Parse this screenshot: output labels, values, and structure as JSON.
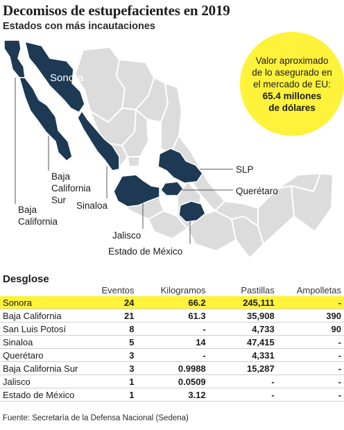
{
  "header": {
    "title": "Decomisos de estupefacientes en 2019",
    "subtitle": "Estados con más incautaciones"
  },
  "map": {
    "highlight_color": "#1d3954",
    "base_color": "#dcdcdc",
    "labels": {
      "sonora": "Sonora",
      "bc_sur": [
        "Baja",
        "California",
        "Sur"
      ],
      "bc": [
        "Baja",
        "California"
      ],
      "sinaloa": "Sinaloa",
      "slp": "SLP",
      "queretaro": "Querétaro",
      "jalisco": "Jalisco",
      "edomex": "Estado de México"
    }
  },
  "badge": {
    "lines": [
      "Valor aproximado",
      "de lo asegurado en",
      "el mercado de EU:"
    ],
    "amount": [
      "65.4 millones",
      "de dólares"
    ],
    "color": "#fff23a"
  },
  "table": {
    "title": "Desglose",
    "headers": [
      "",
      "Eventos",
      "Kilogramos",
      "Pastillas",
      "Ampolletas"
    ],
    "rows": [
      {
        "state": "Sonora",
        "eventos": "24",
        "kg": "66.2",
        "pastillas": "245,111",
        "ampolletas": "-",
        "highlight": true
      },
      {
        "state": "Baja California",
        "eventos": "21",
        "kg": "61.3",
        "pastillas": "35,908",
        "ampolletas": "390"
      },
      {
        "state": "San Luis Potosí",
        "eventos": "8",
        "kg": "-",
        "pastillas": "4,733",
        "ampolletas": "90"
      },
      {
        "state": "Sinaloa",
        "eventos": "5",
        "kg": "14",
        "pastillas": "47,415",
        "ampolletas": "-"
      },
      {
        "state": "Querétaro",
        "eventos": "3",
        "kg": "-",
        "pastillas": "4,331",
        "ampolletas": "-"
      },
      {
        "state": "Baja California Sur",
        "eventos": "3",
        "kg": "0.9988",
        "pastillas": "15,287",
        "ampolletas": "-"
      },
      {
        "state": "Jalisco",
        "eventos": "1",
        "kg": "0.0509",
        "pastillas": "-",
        "ampolletas": "-"
      },
      {
        "state": "Estado de México",
        "eventos": "1",
        "kg": "3.12",
        "pastillas": "-",
        "ampolletas": "-"
      }
    ]
  },
  "footer": {
    "source": "Fuente: Secretaría de la Defensa Nacional (Sedena)"
  }
}
